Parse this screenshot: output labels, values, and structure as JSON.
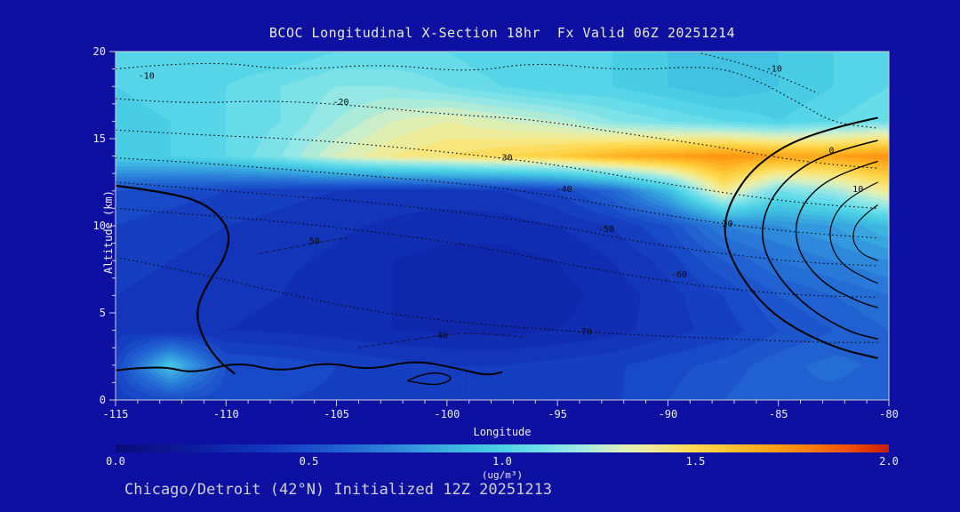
{
  "title": "BCOC Longitudinal X-Section 18hr  Fx Valid 06Z 20251214",
  "subtitle": "Chicago/Detroit (42°N) Initialized 12Z 20251213",
  "colors": {
    "background": "#0d10a0",
    "frame": "#cfcfcf",
    "tick_text": "#ececec",
    "title_text": "#e9e9cf",
    "subtitle_text": "#cfcfcf",
    "contour_dotted": "#070707",
    "contour_solid": "#000000"
  },
  "chart_data": {
    "type": "heatmap",
    "title": "BCOC Longitudinal X-Section 18hr  Fx Valid 06Z 20251214",
    "xlabel": "Longitude",
    "ylabel": "Altitude (km)",
    "xlim": [
      -115,
      -80
    ],
    "ylim": [
      0,
      20
    ],
    "xticks": [
      -115,
      -110,
      -105,
      -100,
      -95,
      -90,
      -85,
      -80
    ],
    "yticks": [
      0,
      5,
      10,
      15,
      20
    ],
    "minor_step_x": 1,
    "minor_step_y": 1,
    "x": [
      -115,
      -112.5,
      -110,
      -107.5,
      -105,
      -102.5,
      -100,
      -97.5,
      -95,
      -92.5,
      -90,
      -87.5,
      -85,
      -82.5,
      -80
    ],
    "y": [
      20,
      18,
      16,
      14,
      12,
      10,
      8,
      6,
      4,
      2,
      0
    ],
    "values_ugm3": [
      [
        1.0,
        1.0,
        1.0,
        1.0,
        1.05,
        1.05,
        1.05,
        1.0,
        1.0,
        1.0,
        0.95,
        0.95,
        0.95,
        1.0,
        1.0
      ],
      [
        1.0,
        1.05,
        1.05,
        1.1,
        1.15,
        1.15,
        1.1,
        1.05,
        1.0,
        1.0,
        0.95,
        0.9,
        0.95,
        1.0,
        1.05
      ],
      [
        0.95,
        1.0,
        1.05,
        1.1,
        1.2,
        1.3,
        1.35,
        1.3,
        1.25,
        1.15,
        1.1,
        1.05,
        1.0,
        1.05,
        1.1
      ],
      [
        1.0,
        1.0,
        1.05,
        1.15,
        1.3,
        1.4,
        1.45,
        1.5,
        1.55,
        1.65,
        1.7,
        1.75,
        1.7,
        1.7,
        1.75
      ],
      [
        0.5,
        0.48,
        0.45,
        0.42,
        0.4,
        0.38,
        0.38,
        0.4,
        0.45,
        0.6,
        0.9,
        1.4,
        1.1,
        1.2,
        1.4
      ],
      [
        0.45,
        0.42,
        0.4,
        0.38,
        0.36,
        0.34,
        0.32,
        0.32,
        0.35,
        0.4,
        0.5,
        0.7,
        0.75,
        0.8,
        0.9
      ],
      [
        0.42,
        0.4,
        0.38,
        0.36,
        0.34,
        0.3,
        0.28,
        0.28,
        0.3,
        0.35,
        0.42,
        0.55,
        0.65,
        0.7,
        0.75
      ],
      [
        0.4,
        0.38,
        0.36,
        0.35,
        0.32,
        0.3,
        0.28,
        0.27,
        0.28,
        0.32,
        0.38,
        0.45,
        0.55,
        0.6,
        0.65
      ],
      [
        0.38,
        0.36,
        0.35,
        0.34,
        0.32,
        0.3,
        0.29,
        0.28,
        0.3,
        0.33,
        0.38,
        0.42,
        0.5,
        0.55,
        0.6
      ],
      [
        0.45,
        0.95,
        0.5,
        0.48,
        0.45,
        0.42,
        0.4,
        0.4,
        0.42,
        0.44,
        0.48,
        0.52,
        0.58,
        0.62,
        0.58
      ],
      [
        0.42,
        0.48,
        0.47,
        0.45,
        0.44,
        0.4,
        0.4,
        0.4,
        0.42,
        0.44,
        0.5,
        0.55,
        0.6,
        0.58,
        0.55
      ]
    ],
    "fill_step": 0.05,
    "colormap": [
      [
        0.0,
        "#0a0a7a"
      ],
      [
        0.2,
        "#0d1c9c"
      ],
      [
        0.3,
        "#102ab0"
      ],
      [
        0.4,
        "#1338bd"
      ],
      [
        0.5,
        "#1a4fca"
      ],
      [
        0.6,
        "#2266d2"
      ],
      [
        0.7,
        "#2b80da"
      ],
      [
        0.8,
        "#35a0de"
      ],
      [
        0.9,
        "#3fbce2"
      ],
      [
        1.0,
        "#4cd2e6"
      ],
      [
        1.1,
        "#72dfe8"
      ],
      [
        1.2,
        "#9fe9e2"
      ],
      [
        1.3,
        "#d8f0c0"
      ],
      [
        1.4,
        "#f4ea8e"
      ],
      [
        1.5,
        "#ffd94f"
      ],
      [
        1.6,
        "#ffc02e"
      ],
      [
        1.7,
        "#ffa218"
      ],
      [
        1.8,
        "#fb7d0a"
      ],
      [
        1.9,
        "#ef4f06"
      ],
      [
        2.0,
        "#c81e02"
      ]
    ],
    "colorbar": {
      "range": [
        0,
        2
      ],
      "ticks": [
        "0.0",
        "0.5",
        "1.0",
        "1.5",
        "2.0"
      ],
      "tick_values": [
        0,
        0.5,
        1.0,
        1.5,
        2.0
      ],
      "label": "(ug/m³)"
    },
    "contours": {
      "dotted": [
        {
          "label": "-10",
          "label_pos": [
            -113.6,
            18.6
          ],
          "points": [
            [
              -115,
              19.0
            ],
            [
              -111,
              19.5
            ],
            [
              -107,
              18.9
            ],
            [
              -103,
              19.3
            ],
            [
              -99,
              18.8
            ],
            [
              -96,
              19.4
            ],
            [
              -92,
              18.9
            ],
            [
              -88,
              19.2
            ],
            [
              -86,
              18.4
            ],
            [
              -84,
              17.0
            ],
            [
              -82.5,
              15.9
            ],
            [
              -80.5,
              15.6
            ]
          ]
        },
        {
          "label": "-10",
          "label_pos": [
            -85.2,
            19.0
          ],
          "points": [
            [
              -88.5,
              19.9
            ],
            [
              -86.5,
              19.3
            ],
            [
              -84.8,
              18.5
            ],
            [
              -83.2,
              17.6
            ]
          ]
        },
        {
          "label": "-20",
          "label_pos": [
            -104.8,
            17.1
          ],
          "points": [
            [
              -115,
              17.3
            ],
            [
              -112,
              17.0
            ],
            [
              -108,
              17.2
            ],
            [
              -104,
              16.9
            ],
            [
              -100,
              16.4
            ],
            [
              -96,
              16.1
            ],
            [
              -92,
              15.3
            ],
            [
              -88,
              14.6
            ],
            [
              -85,
              13.9
            ],
            [
              -82.5,
              13.5
            ],
            [
              -80.5,
              13.3
            ]
          ]
        },
        {
          "label": "-30",
          "label_pos": [
            -97.4,
            13.9
          ],
          "points": [
            [
              -115,
              15.5
            ],
            [
              -111,
              15.2
            ],
            [
              -107,
              15.0
            ],
            [
              -103,
              14.6
            ],
            [
              -99,
              14.1
            ],
            [
              -95,
              13.5
            ],
            [
              -91,
              12.6
            ],
            [
              -87.5,
              11.9
            ],
            [
              -84,
              11.3
            ],
            [
              -80.5,
              11.0
            ]
          ]
        },
        {
          "label": "-40",
          "label_pos": [
            -94.7,
            12.1
          ],
          "points": [
            [
              -115,
              13.9
            ],
            [
              -111,
              13.6
            ],
            [
              -107,
              13.2
            ],
            [
              -103,
              12.8
            ],
            [
              -99,
              12.4
            ],
            [
              -95,
              11.7
            ],
            [
              -91,
              10.8
            ],
            [
              -87.5,
              10.1
            ],
            [
              -84,
              9.6
            ],
            [
              -80.5,
              9.3
            ]
          ]
        },
        {
          "label": "-50",
          "label_pos": [
            -92.8,
            9.8
          ],
          "points": [
            [
              -115,
              12.5
            ],
            [
              -111,
              12.1
            ],
            [
              -107,
              11.7
            ],
            [
              -103,
              11.3
            ],
            [
              -99,
              10.7
            ],
            [
              -95,
              10.0
            ],
            [
              -91,
              9.0
            ],
            [
              -87.5,
              8.4
            ],
            [
              -84,
              7.9
            ],
            [
              -80.5,
              7.7
            ]
          ]
        },
        {
          "label": "-60",
          "label_pos": [
            -89.5,
            7.2
          ],
          "points": [
            [
              -115,
              11.0
            ],
            [
              -111,
              10.6
            ],
            [
              -107,
              10.2
            ],
            [
              -103,
              9.6
            ],
            [
              -99,
              8.9
            ],
            [
              -95,
              7.9
            ],
            [
              -91,
              7.0
            ],
            [
              -87.5,
              6.4
            ],
            [
              -84,
              6.0
            ],
            [
              -80.5,
              5.9
            ]
          ]
        },
        {
          "label": "-70",
          "label_pos": [
            -93.8,
            3.9
          ],
          "points": [
            [
              -115,
              8.2
            ],
            [
              -111,
              7.2
            ],
            [
              -107,
              6.0
            ],
            [
              -103,
              5.0
            ],
            [
              -99,
              4.4
            ],
            [
              -95,
              4.0
            ],
            [
              -91,
              3.7
            ],
            [
              -87,
              3.5
            ],
            [
              -83,
              3.3
            ],
            [
              -80.5,
              3.3
            ]
          ]
        }
      ],
      "thin": [
        {
          "label": "40",
          "label_pos": [
            -100.2,
            3.7
          ],
          "points": [
            [
              -104,
              3.0
            ],
            [
              -101.5,
              3.5
            ],
            [
              -99,
              3.9
            ],
            [
              -96.5,
              3.6
            ]
          ]
        },
        {
          "label": "50",
          "label_pos": [
            -106.0,
            9.1
          ],
          "points": [
            [
              -108.5,
              8.4
            ],
            [
              -106.5,
              8.9
            ],
            [
              -104.5,
              9.3
            ]
          ]
        }
      ],
      "solid": [
        {
          "label": "20",
          "label_pos": [
            -87.3,
            10.1
          ],
          "w": 2.0,
          "points": [
            [
              -80.5,
              16.2
            ],
            [
              -83.5,
              15.4
            ],
            [
              -86,
              13.6
            ],
            [
              -87.3,
              11.2
            ],
            [
              -87.5,
              9.2
            ],
            [
              -86.6,
              6.8
            ],
            [
              -85,
              4.6
            ],
            [
              -82.5,
              3.0
            ],
            [
              -80.5,
              2.4
            ]
          ]
        },
        {
          "label": "0",
          "label_pos": [
            -82.6,
            14.3
          ],
          "w": 1.6,
          "points": [
            [
              -80.5,
              14.9
            ],
            [
              -82.8,
              14.2
            ],
            [
              -84.6,
              12.8
            ],
            [
              -85.6,
              11.0
            ],
            [
              -85.8,
              9.0
            ],
            [
              -85.0,
              7.0
            ],
            [
              -83.6,
              5.2
            ],
            [
              -81.8,
              3.9
            ],
            [
              -80.5,
              3.5
            ]
          ]
        },
        {
          "label": "10",
          "label_pos": [
            -81.4,
            12.1
          ],
          "w": 1.4,
          "points": [
            [
              -80.5,
              13.7
            ],
            [
              -82.3,
              13.0
            ],
            [
              -83.7,
              11.7
            ],
            [
              -84.3,
              10.0
            ],
            [
              -84.0,
              8.2
            ],
            [
              -82.9,
              6.6
            ],
            [
              -81.3,
              5.6
            ],
            [
              -80.5,
              5.3
            ]
          ]
        },
        {
          "label": "",
          "label_pos": null,
          "w": 1.2,
          "points": [
            [
              -80.5,
              12.5
            ],
            [
              -81.8,
              11.7
            ],
            [
              -82.6,
              10.4
            ],
            [
              -82.7,
              9.0
            ],
            [
              -82.1,
              7.7
            ],
            [
              -80.9,
              6.9
            ],
            [
              -80.5,
              6.7
            ]
          ]
        },
        {
          "label": "",
          "label_pos": null,
          "w": 1.1,
          "points": [
            [
              -80.5,
              11.2
            ],
            [
              -81.4,
              10.4
            ],
            [
              -81.7,
              9.3
            ],
            [
              -81.3,
              8.4
            ],
            [
              -80.5,
              8.0
            ]
          ]
        },
        {
          "label": "",
          "label_pos": null,
          "w": 2.2,
          "points": [
            [
              -115,
              12.3
            ],
            [
              -112.5,
              11.9
            ],
            [
              -110.8,
              11.2
            ],
            [
              -109.8,
              9.8
            ],
            [
              -110.0,
              8.2
            ],
            [
              -110.9,
              6.6
            ],
            [
              -111.4,
              5.0
            ],
            [
              -111.0,
              3.4
            ],
            [
              -110.3,
              2.2
            ],
            [
              -109.6,
              1.5
            ]
          ]
        },
        {
          "label": "",
          "label_pos": null,
          "w": 2.0,
          "points": [
            [
              -115,
              1.7
            ],
            [
              -113,
              2.0
            ],
            [
              -111.5,
              1.5
            ],
            [
              -109.5,
              2.2
            ],
            [
              -107.5,
              1.6
            ],
            [
              -105.5,
              2.2
            ],
            [
              -103.5,
              1.7
            ],
            [
              -101.5,
              2.3
            ],
            [
              -99.5,
              1.8
            ],
            [
              -98.2,
              1.4
            ],
            [
              -97.5,
              1.6
            ]
          ]
        },
        {
          "label": "",
          "label_pos": null,
          "w": 1.4,
          "points": [
            [
              -101.8,
              1.1
            ],
            [
              -100.8,
              1.7
            ],
            [
              -99.6,
              1.3
            ],
            [
              -100.4,
              0.8
            ],
            [
              -101.8,
              1.1
            ]
          ]
        }
      ]
    }
  }
}
